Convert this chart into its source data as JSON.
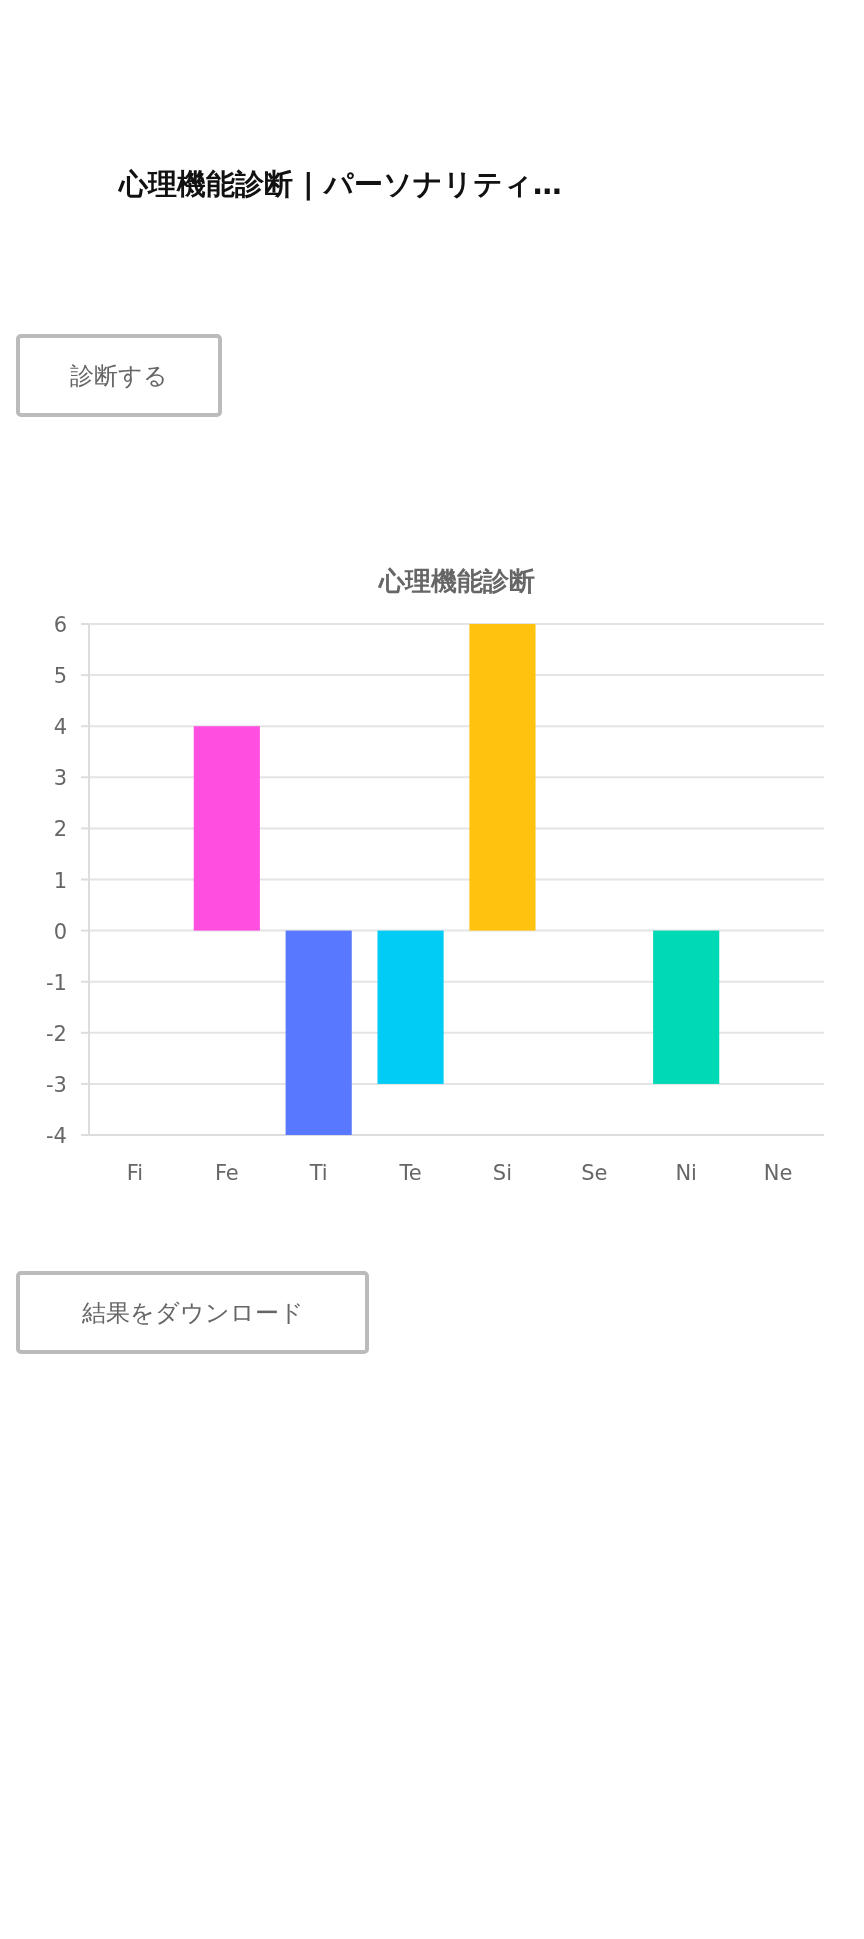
{
  "chart_data": {
    "type": "bar",
    "title": "心理機能診断",
    "categories": [
      "Fi",
      "Fe",
      "Ti",
      "Te",
      "Si",
      "Se",
      "Ni",
      "Ne"
    ],
    "values": [
      0,
      4,
      -4,
      -3,
      6,
      0,
      -3,
      0
    ],
    "colors": [
      null,
      "#ff4fe0",
      "#5878ff",
      "#00ccf5",
      "#ffc20f",
      null,
      "#00d9b5",
      null
    ],
    "ylim": [
      -4,
      6
    ],
    "yticks": [
      -4,
      -3,
      -2,
      -1,
      0,
      1,
      2,
      3,
      4,
      5,
      6
    ],
    "grid": "y",
    "annotations": [
      "心理機能診断 | パーソナリティ…",
      "診断する",
      "結果をダウンロード"
    ]
  }
}
